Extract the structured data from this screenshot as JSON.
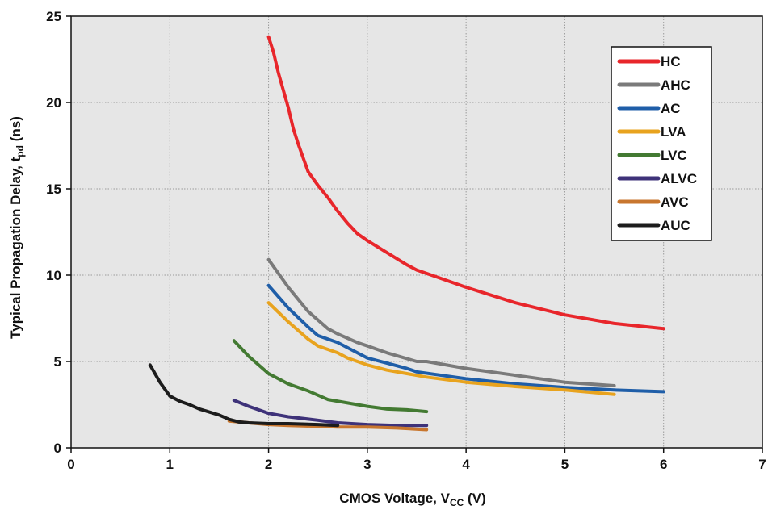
{
  "chart_data": {
    "type": "line",
    "title": "",
    "xlabel": {
      "main": "CMOS Voltage, V",
      "sub": "CC",
      "tail": " (V)"
    },
    "ylabel": {
      "main": "Typical Propagation Delay, t",
      "sub": "pd",
      "tail": " (ns)"
    },
    "xlim": [
      0,
      7
    ],
    "ylim": [
      0,
      25
    ],
    "xticks": [
      0,
      1,
      2,
      3,
      4,
      5,
      6,
      7
    ],
    "yticks": [
      0,
      5,
      10,
      15,
      20,
      25
    ],
    "xtick_labels": [
      "0",
      "1",
      "2",
      "3",
      "4",
      "5",
      "6",
      "7"
    ],
    "ytick_labels": [
      "0",
      "5",
      "10",
      "15",
      "20",
      "25"
    ],
    "grid": true,
    "background": "#e6e6e6",
    "legend_position": "top-right",
    "series": [
      {
        "name": "HC",
        "color": "#e8262b",
        "points": [
          [
            2.0,
            23.8
          ],
          [
            2.05,
            22.9
          ],
          [
            2.1,
            21.7
          ],
          [
            2.2,
            19.7
          ],
          [
            2.25,
            18.5
          ],
          [
            2.3,
            17.6
          ],
          [
            2.4,
            16.0
          ],
          [
            2.5,
            15.2
          ],
          [
            2.6,
            14.5
          ],
          [
            2.7,
            13.7
          ],
          [
            2.8,
            13.0
          ],
          [
            2.9,
            12.4
          ],
          [
            3.0,
            12.0
          ],
          [
            3.2,
            11.3
          ],
          [
            3.4,
            10.6
          ],
          [
            3.5,
            10.3
          ],
          [
            3.7,
            9.9
          ],
          [
            4.0,
            9.3
          ],
          [
            4.5,
            8.4
          ],
          [
            5.0,
            7.7
          ],
          [
            5.5,
            7.2
          ],
          [
            6.0,
            6.9
          ]
        ]
      },
      {
        "name": "AHC",
        "color": "#7a7a7a",
        "points": [
          [
            2.0,
            10.9
          ],
          [
            2.2,
            9.3
          ],
          [
            2.4,
            7.9
          ],
          [
            2.6,
            6.9
          ],
          [
            2.7,
            6.6
          ],
          [
            2.9,
            6.1
          ],
          [
            3.0,
            5.9
          ],
          [
            3.2,
            5.5
          ],
          [
            3.5,
            5.0
          ],
          [
            3.6,
            5.0
          ],
          [
            4.0,
            4.6
          ],
          [
            4.5,
            4.2
          ],
          [
            5.0,
            3.8
          ],
          [
            5.5,
            3.6
          ]
        ]
      },
      {
        "name": "AC",
        "color": "#1f5ea8",
        "points": [
          [
            2.0,
            9.4
          ],
          [
            2.2,
            8.1
          ],
          [
            2.4,
            7.0
          ],
          [
            2.5,
            6.5
          ],
          [
            2.7,
            6.1
          ],
          [
            2.8,
            5.8
          ],
          [
            3.0,
            5.2
          ],
          [
            3.2,
            4.9
          ],
          [
            3.4,
            4.6
          ],
          [
            3.5,
            4.4
          ],
          [
            4.0,
            4.0
          ],
          [
            4.5,
            3.7
          ],
          [
            5.0,
            3.5
          ],
          [
            5.5,
            3.35
          ],
          [
            6.0,
            3.25
          ]
        ]
      },
      {
        "name": "LVA",
        "color": "#e8a31e",
        "points": [
          [
            2.0,
            8.4
          ],
          [
            2.2,
            7.3
          ],
          [
            2.4,
            6.3
          ],
          [
            2.5,
            5.9
          ],
          [
            2.7,
            5.5
          ],
          [
            2.8,
            5.2
          ],
          [
            3.0,
            4.8
          ],
          [
            3.2,
            4.5
          ],
          [
            3.4,
            4.3
          ],
          [
            3.6,
            4.1
          ],
          [
            4.0,
            3.8
          ],
          [
            4.5,
            3.55
          ],
          [
            5.0,
            3.35
          ],
          [
            5.5,
            3.1
          ]
        ]
      },
      {
        "name": "LVC",
        "color": "#437a32",
        "points": [
          [
            1.65,
            6.2
          ],
          [
            1.8,
            5.3
          ],
          [
            2.0,
            4.3
          ],
          [
            2.2,
            3.7
          ],
          [
            2.4,
            3.3
          ],
          [
            2.6,
            2.8
          ],
          [
            2.8,
            2.6
          ],
          [
            3.0,
            2.4
          ],
          [
            3.2,
            2.25
          ],
          [
            3.4,
            2.2
          ],
          [
            3.6,
            2.1
          ]
        ]
      },
      {
        "name": "ALVC",
        "color": "#3e3279",
        "points": [
          [
            1.65,
            2.75
          ],
          [
            1.8,
            2.4
          ],
          [
            2.0,
            2.0
          ],
          [
            2.2,
            1.8
          ],
          [
            2.5,
            1.6
          ],
          [
            2.7,
            1.45
          ],
          [
            3.0,
            1.35
          ],
          [
            3.3,
            1.3
          ],
          [
            3.6,
            1.3
          ]
        ]
      },
      {
        "name": "AVC",
        "color": "#c8762e",
        "points": [
          [
            1.6,
            1.55
          ],
          [
            1.8,
            1.45
          ],
          [
            2.0,
            1.35
          ],
          [
            2.2,
            1.3
          ],
          [
            2.5,
            1.25
          ],
          [
            2.7,
            1.2
          ],
          [
            3.0,
            1.2
          ],
          [
            3.3,
            1.15
          ],
          [
            3.6,
            1.05
          ]
        ]
      },
      {
        "name": "AUC",
        "color": "#1c1c1c",
        "points": [
          [
            0.8,
            4.8
          ],
          [
            0.9,
            3.8
          ],
          [
            1.0,
            3.0
          ],
          [
            1.1,
            2.7
          ],
          [
            1.2,
            2.5
          ],
          [
            1.3,
            2.25
          ],
          [
            1.5,
            1.9
          ],
          [
            1.6,
            1.65
          ],
          [
            1.7,
            1.5
          ],
          [
            1.8,
            1.45
          ],
          [
            2.0,
            1.4
          ],
          [
            2.2,
            1.4
          ],
          [
            2.5,
            1.35
          ],
          [
            2.7,
            1.3
          ]
        ]
      }
    ]
  }
}
